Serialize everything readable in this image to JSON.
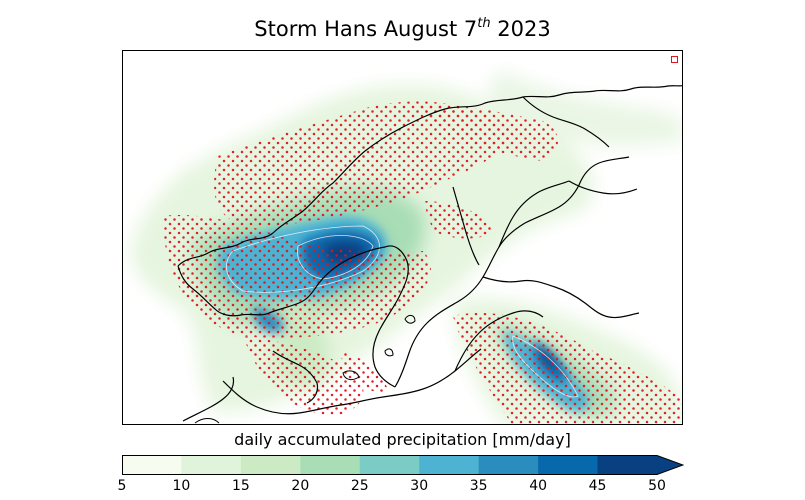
{
  "title": {
    "prefix": "Storm Hans August 7",
    "superscript": "th",
    "suffix": " 2023"
  },
  "map": {
    "legend_marker_color": "#e0141e",
    "stipple_color": "#e0141e",
    "coastline_color": "#000000",
    "precip_levels_mm_per_day": [
      5,
      10,
      15,
      20,
      25,
      30,
      35,
      40,
      45,
      50
    ]
  },
  "colorbar": {
    "label": "daily accumulated precipitation [mm/day]",
    "extend": "max",
    "ticks": [
      "5",
      "10",
      "15",
      "20",
      "25",
      "30",
      "35",
      "40",
      "45",
      "50"
    ],
    "colors": [
      "#f7fcf0",
      "#e0f3db",
      "#ccebc5",
      "#a8ddb5",
      "#7bccc4",
      "#4eb3d3",
      "#2b8cbe",
      "#0868ac",
      "#084081"
    ],
    "extend_color": "#084081"
  }
}
